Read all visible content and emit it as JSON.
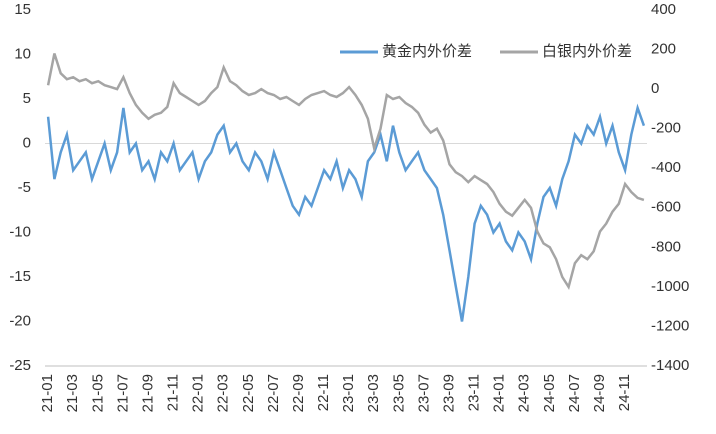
{
  "chart_data": {
    "type": "line",
    "categories": [
      "21-01",
      null,
      null,
      null,
      "21-03",
      null,
      null,
      null,
      "21-05",
      null,
      null,
      null,
      "21-07",
      null,
      null,
      null,
      "21-09",
      null,
      null,
      null,
      "21-11",
      null,
      null,
      null,
      "22-01",
      null,
      null,
      null,
      "22-03",
      null,
      null,
      null,
      "22-05",
      null,
      null,
      null,
      "22-07",
      null,
      null,
      null,
      "22-09",
      null,
      null,
      null,
      "22-11",
      null,
      null,
      null,
      "23-01",
      null,
      null,
      null,
      "23-03",
      null,
      null,
      null,
      "23-05",
      null,
      null,
      null,
      "23-07",
      null,
      null,
      null,
      "23-09",
      null,
      null,
      null,
      "23-11",
      null,
      null,
      null,
      "24-01",
      null,
      null,
      null,
      "24-03",
      null,
      null,
      null,
      "24-05",
      null,
      null,
      null,
      "24-07",
      null,
      null,
      null,
      "24-09",
      null,
      null,
      null,
      "24-11",
      null,
      null,
      null
    ],
    "series": [
      {
        "name": "黄金内外价差",
        "color": "#5b9bd5",
        "axis": "y",
        "values": [
          3,
          -4,
          -1,
          1,
          -3,
          -2,
          -1,
          -4,
          -2,
          0,
          -3,
          -1,
          4,
          -1,
          0,
          -3,
          -2,
          -4,
          -1,
          -2,
          0,
          -3,
          -2,
          -1,
          -4,
          -2,
          -1,
          1,
          2,
          -1,
          0,
          -2,
          -3,
          -1,
          -2,
          -4,
          -1,
          -3,
          -5,
          -7,
          -8,
          -6,
          -7,
          -5,
          -3,
          -4,
          -2,
          -5,
          -3,
          -4,
          -6,
          -2,
          -1,
          1,
          -2,
          2,
          -1,
          -3,
          -2,
          -1,
          -3,
          -4,
          -5,
          -8,
          -12,
          -16,
          -20,
          -15,
          -9,
          -7,
          -8,
          -10,
          -9,
          -11,
          -12,
          -10,
          -11,
          -13,
          -9,
          -6,
          -5,
          -7,
          -4,
          -2,
          1,
          0,
          2,
          1,
          3,
          0,
          2,
          -1,
          -3,
          1,
          4,
          2
        ]
      },
      {
        "name": "白银内外价差",
        "color": "#a5a5a5",
        "axis": "y2",
        "values": [
          20,
          180,
          80,
          50,
          60,
          40,
          50,
          30,
          40,
          20,
          10,
          0,
          60,
          -20,
          -80,
          -120,
          -150,
          -130,
          -120,
          -90,
          30,
          -20,
          -40,
          -60,
          -80,
          -60,
          -20,
          10,
          110,
          40,
          20,
          -10,
          -30,
          -20,
          0,
          -20,
          -30,
          -50,
          -40,
          -60,
          -80,
          -50,
          -30,
          -20,
          -10,
          -30,
          -40,
          -20,
          10,
          -30,
          -80,
          -150,
          -300,
          -200,
          -30,
          -50,
          -40,
          -70,
          -90,
          -120,
          -180,
          -220,
          -200,
          -260,
          -380,
          -420,
          -440,
          -470,
          -440,
          -460,
          -480,
          -520,
          -580,
          -620,
          -640,
          -600,
          -560,
          -600,
          -720,
          -780,
          -800,
          -860,
          -950,
          -1000,
          -880,
          -840,
          -860,
          -820,
          -720,
          -680,
          -620,
          -580,
          -480,
          -520,
          -550,
          -560
        ]
      }
    ],
    "ylim": [
      -25,
      15
    ],
    "yticks": [
      15,
      10,
      5,
      0,
      -5,
      -10,
      -15,
      -20,
      -25
    ],
    "y2lim": [
      -1400,
      400
    ],
    "y2ticks": [
      400,
      200,
      0,
      -200,
      -400,
      -600,
      -800,
      -1000,
      -1200,
      -1400
    ],
    "legend": "top-right"
  }
}
